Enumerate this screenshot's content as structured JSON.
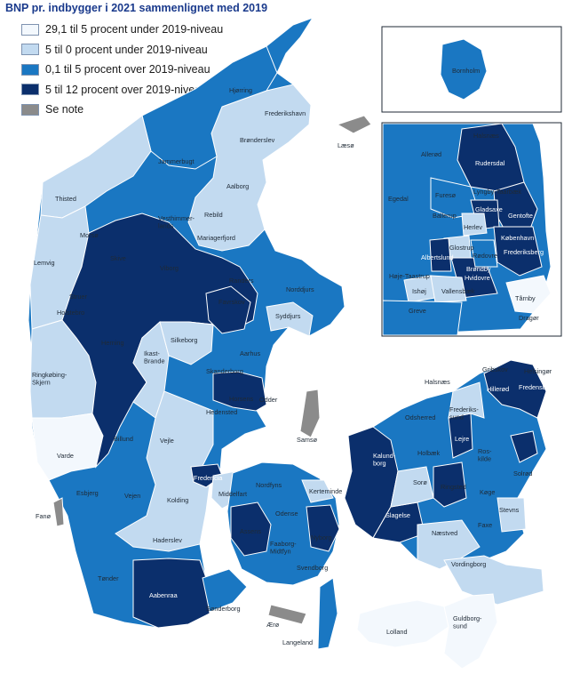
{
  "title": "BNP pr. indbygger i 2021 sammenlignet med 2019",
  "colors": {
    "c1": "#f3f8fd",
    "c2": "#c2daf0",
    "c3": "#1a77c2",
    "c4": "#0b2f6c",
    "note": "#8b8b8b",
    "sea": "#ffffff",
    "border": "#ffffff"
  },
  "legend": [
    {
      "key": "c1",
      "label": "29,1 til 5 procent under 2019-niveau"
    },
    {
      "key": "c2",
      "label": "5 til 0 procent under 2019-niveau"
    },
    {
      "key": "c3",
      "label": "0,1 til 5 procent over 2019-niveau"
    },
    {
      "key": "c4",
      "label": "5 til 12 procent over 2019-niveau"
    },
    {
      "key": "note",
      "label": "Se note"
    }
  ],
  "map_labels": {
    "bornholm": "Bornholm",
    "hjorring": "Hjørring",
    "frederikshavn": "Frederikshavn",
    "laeso": "Læsø",
    "bronderslev": "Brønderslev",
    "jammerbugt": "Jammerbugt",
    "thisted": "Thisted",
    "aalborg": "Aalborg",
    "vesthimmerlands": "Vesthimmer-\nlands",
    "rebild": "Rebild",
    "mariagerfjord": "Mariagerfjord",
    "morso": "Morsø",
    "skive": "Skive",
    "lemvig": "Lemvig",
    "struer": "Struer",
    "viborg": "Viborg",
    "randers": "Randers",
    "norddjurs": "Norddjurs",
    "holstebro": "Holstebro",
    "favrskov": "Favrskov",
    "syddjurs": "Syddjurs",
    "herning": "Herning",
    "silkeborg": "Silkeborg",
    "aarhus": "Aarhus",
    "ikast_brande": "Ikast-\nBrande",
    "ringkobing": "Ringkøbing-\nSkjern",
    "skanderborg": "Skanderborg",
    "horsens": "Horsens",
    "odder": "Odder",
    "samso": "Samsø",
    "billund": "Billund",
    "vejle": "Vejle",
    "hedensted": "Hedensted",
    "varde": "Varde",
    "fredericia": "Fredericia",
    "middelfart": "Middelfart",
    "nordfyns": "Nordfyns",
    "kerteminde": "Kerteminde",
    "esbjerg": "Esbjerg",
    "vejen": "Vejen",
    "kolding": "Kolding",
    "odense": "Odense",
    "fano": "Fanø",
    "assens": "Assens",
    "nyborg": "Nyborg",
    "haderslev": "Haderslev",
    "faaborg": "Faaborg-\nMidtfyn",
    "svendborg": "Svendborg",
    "tonder": "Tønder",
    "aabenraa": "Aabenraa",
    "sonderborg": "Sønderborg",
    "aero": "Ærø",
    "langeland": "Langeland",
    "gribskov": "Gribskov",
    "helsingor": "Helsingør",
    "halsnaes": "Halsnæs",
    "hillerod": "Hillerød",
    "fredensborg": "Fredensborg",
    "odsherred": "Odsherred",
    "frederikssund": "Frederiks-\nsund",
    "kalundborg": "Kalund-\nborg",
    "holbaek": "Holbæk",
    "lejre": "Lejre",
    "roskilde": "Ros-\nkilde",
    "solrod": "Solrød",
    "soro": "Sorø",
    "ringsted": "Ringsted",
    "koge": "Køge",
    "slagelse": "Slagelse",
    "stevns": "Stevns",
    "naestved": "Næstved",
    "faxe": "Faxe",
    "vordingborg": "Vordingborg",
    "lolland": "Lolland",
    "guldborgsund": "Guldborg-\nsund",
    "i_halsnaes": "Halsnæs",
    "i_allerod": "Allerød",
    "i_rudersdal": "Rudersdal",
    "i_egedal": "Egedal",
    "i_furesoe": "Furesø",
    "i_lyngby": "Lyngby-Taarbæk",
    "i_ballerup": "Ballerup",
    "i_gladsaxe": "Gladsaxe",
    "i_gentofte": "Gentofte",
    "i_herlev": "Herlev",
    "i_kobenhavn": "København",
    "i_glostrup": "Glostrup",
    "i_rodovre": "Rødovre",
    "i_frederiksberg": "Frederiksberg",
    "i_albertslund": "Albertslund",
    "i_brondby": "Brøndby",
    "i_hoje": "Høje-Taastrup",
    "i_hvidovre": "Hvidovre",
    "i_ishoj": "Ishøj",
    "i_vallensbaek": "Vallensbæk",
    "i_taarnby": "Tårnby",
    "i_greve": "Greve",
    "i_dragor": "Dragør"
  }
}
